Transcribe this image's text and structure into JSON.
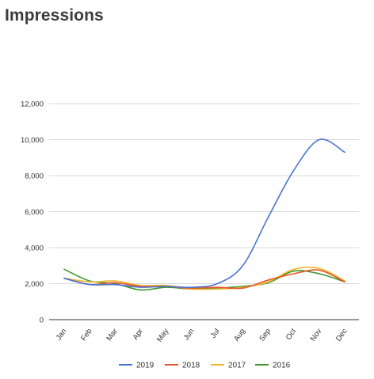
{
  "header": {
    "title": "Impressions"
  },
  "chart_data": {
    "type": "line",
    "title": "Impressions",
    "xlabel": "",
    "ylabel": "",
    "categories": [
      "Jan",
      "Feb",
      "Mar",
      "Apr",
      "May",
      "Jun",
      "Jul",
      "Aug",
      "Sep",
      "Oct",
      "Nov",
      "Dec"
    ],
    "ylim": [
      0,
      12000
    ],
    "yticks": [
      0,
      2000,
      4000,
      6000,
      8000,
      10000,
      12000
    ],
    "ytick_labels": [
      "0",
      "2,000",
      "4,000",
      "6,000",
      "8,000",
      "10,000",
      "12,000"
    ],
    "grid": true,
    "legend": "bottom",
    "series": [
      {
        "name": "2019",
        "color": "#4a74d1",
        "values": [
          2300,
          1950,
          1950,
          1800,
          1850,
          1800,
          2000,
          3000,
          5700,
          8300,
          10000,
          9300
        ]
      },
      {
        "name": "2018",
        "color": "#e8562a",
        "values": [
          2300,
          1950,
          2050,
          1850,
          1850,
          1750,
          1800,
          1750,
          2200,
          2550,
          2750,
          2100
        ]
      },
      {
        "name": "2017",
        "color": "#f2b632",
        "values": [
          2300,
          2100,
          2150,
          1900,
          1900,
          1700,
          1700,
          1800,
          2100,
          2800,
          2850,
          2150
        ]
      },
      {
        "name": "2016",
        "color": "#3d9a2e",
        "values": [
          2800,
          2150,
          2000,
          1650,
          1800,
          1700,
          1750,
          1850,
          2050,
          2700,
          2550,
          2100
        ]
      }
    ]
  }
}
